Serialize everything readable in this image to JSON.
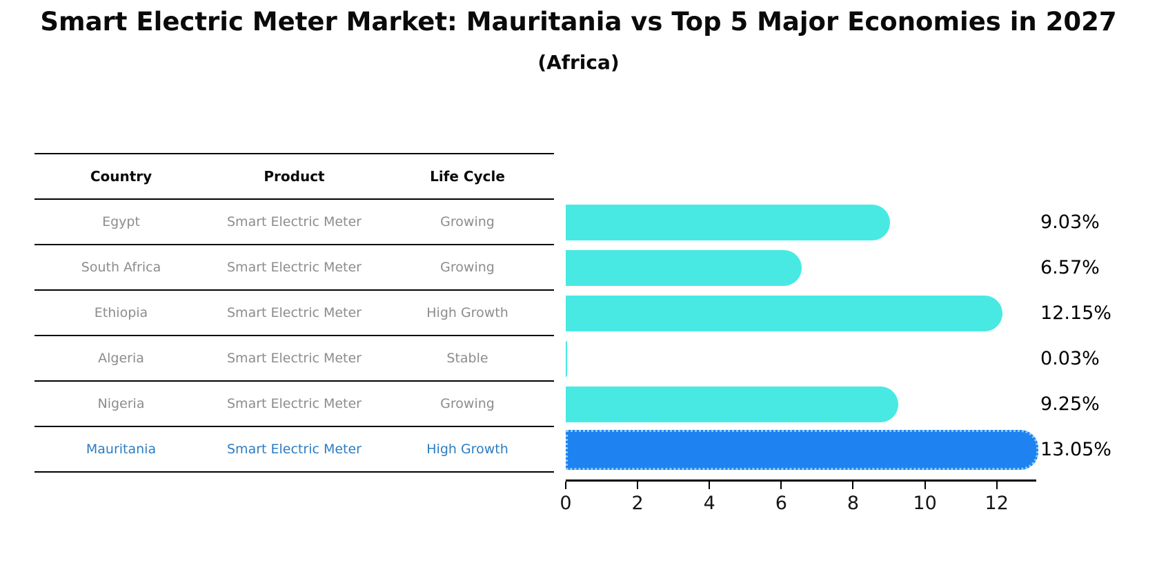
{
  "title": "Smart Electric Meter Market: Mauritania vs Top 5 Major Economies in 2027",
  "subtitle": "(Africa)",
  "table": {
    "headers": [
      "Country",
      "Product",
      "Life Cycle"
    ],
    "rows": [
      {
        "country": "Egypt",
        "product": "Smart Electric Meter",
        "life_cycle": "Growing",
        "highlight": false
      },
      {
        "country": "South Africa",
        "product": "Smart Electric Meter",
        "life_cycle": "Growing",
        "highlight": false
      },
      {
        "country": "Ethiopia",
        "product": "Smart Electric Meter",
        "life_cycle": "High Growth",
        "highlight": false
      },
      {
        "country": "Algeria",
        "product": "Smart Electric Meter",
        "life_cycle": "Stable",
        "highlight": false
      },
      {
        "country": "Nigeria",
        "product": "Smart Electric Meter",
        "life_cycle": "Growing",
        "highlight": false
      },
      {
        "country": "Mauritania",
        "product": "Smart Electric Meter",
        "life_cycle": "High Growth",
        "highlight": true
      }
    ]
  },
  "chart_data": {
    "type": "bar",
    "orientation": "horizontal",
    "categories": [
      "Egypt",
      "South Africa",
      "Ethiopia",
      "Algeria",
      "Nigeria",
      "Mauritania"
    ],
    "values": [
      9.03,
      6.57,
      12.15,
      0.03,
      9.25,
      13.05
    ],
    "labels": [
      "9.03%",
      "6.57%",
      "12.15%",
      "0.03%",
      "9.25%",
      "13.05%"
    ],
    "xticks": [
      0,
      2,
      4,
      6,
      8,
      10,
      12
    ],
    "xlim": [
      0,
      13.1
    ],
    "grid": false,
    "legend": "none",
    "bar_color": "#48E9E3",
    "highlight_color": "#1E82F0",
    "highlight_border_color": "#8ccbf7",
    "highlight_index": 5,
    "highlight_text_color": "#2b7cc2"
  }
}
